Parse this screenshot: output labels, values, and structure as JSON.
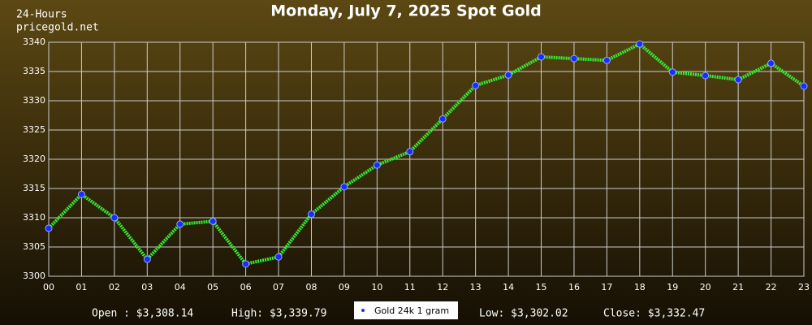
{
  "chart_data": {
    "type": "line",
    "title": "Monday, July 7, 2025 Spot Gold",
    "source_lines": [
      "24-Hours",
      "pricegold.net"
    ],
    "categories": [
      "00",
      "01",
      "02",
      "03",
      "04",
      "05",
      "06",
      "07",
      "08",
      "09",
      "10",
      "11",
      "12",
      "13",
      "14",
      "15",
      "16",
      "17",
      "18",
      "19",
      "20",
      "21",
      "22",
      "23"
    ],
    "series": [
      {
        "name": "Gold 24k 1 gram",
        "color": "#33ee33",
        "marker_color": "#1a2cff",
        "values": [
          3308.2,
          3314.0,
          3310.0,
          3302.9,
          3308.9,
          3309.4,
          3302.1,
          3303.3,
          3310.6,
          3315.3,
          3319.0,
          3321.3,
          3326.9,
          3332.6,
          3334.4,
          3337.5,
          3337.2,
          3336.9,
          3339.7,
          3334.9,
          3334.3,
          3333.6,
          3336.4,
          3332.5
        ]
      }
    ],
    "ylim": [
      3300,
      3340
    ],
    "yticks": [
      3300,
      3305,
      3310,
      3315,
      3320,
      3325,
      3330,
      3335,
      3340
    ],
    "grid": true,
    "stats": [
      "Open : $3,308.14",
      "High: $3,339.79",
      "Low: $3,302.02",
      "Close: $3,332.47"
    ]
  }
}
